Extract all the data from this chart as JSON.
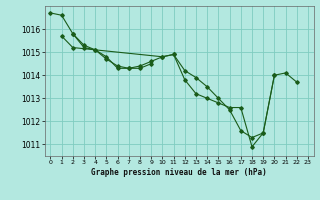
{
  "title": "Graphe pression niveau de la mer (hPa)",
  "background_color": "#b3e8e0",
  "grid_color": "#7fccc0",
  "line_color": "#1a5c1a",
  "xlim": [
    -0.5,
    23.5
  ],
  "ylim": [
    1010.5,
    1017.0
  ],
  "yticks": [
    1011,
    1012,
    1013,
    1014,
    1015,
    1016
  ],
  "xticks": [
    0,
    1,
    2,
    3,
    4,
    5,
    6,
    7,
    8,
    9,
    10,
    11,
    12,
    13,
    14,
    15,
    16,
    17,
    18,
    19,
    20,
    21,
    22,
    23
  ],
  "series": [
    {
      "x": [
        0,
        1,
        2,
        3,
        4,
        5,
        6,
        7,
        8,
        9,
        10,
        11,
        12,
        13,
        14,
        15,
        16,
        17,
        18,
        19,
        20,
        21,
        22
      ],
      "y": [
        1016.7,
        1016.6,
        1015.8,
        1015.2,
        1015.1,
        1014.8,
        1014.3,
        1014.3,
        1014.4,
        1014.6,
        1014.8,
        1014.9,
        1013.8,
        1013.2,
        1013.0,
        1012.8,
        1012.6,
        1012.6,
        1010.9,
        1011.5,
        1014.0,
        1014.1,
        1013.7
      ]
    },
    {
      "x": [
        2,
        3,
        4,
        5,
        6,
        7,
        8,
        9
      ],
      "y": [
        1015.8,
        1015.3,
        1015.1,
        1014.7,
        1014.4,
        1014.3,
        1014.3,
        1014.5
      ]
    },
    {
      "x": [
        1,
        2,
        10,
        11,
        12,
        13,
        14,
        15,
        16,
        17,
        18,
        19,
        20
      ],
      "y": [
        1015.7,
        1015.2,
        1014.8,
        1014.9,
        1014.2,
        1013.9,
        1013.5,
        1013.0,
        1012.5,
        1011.6,
        1011.3,
        1011.5,
        1014.0
      ]
    }
  ]
}
